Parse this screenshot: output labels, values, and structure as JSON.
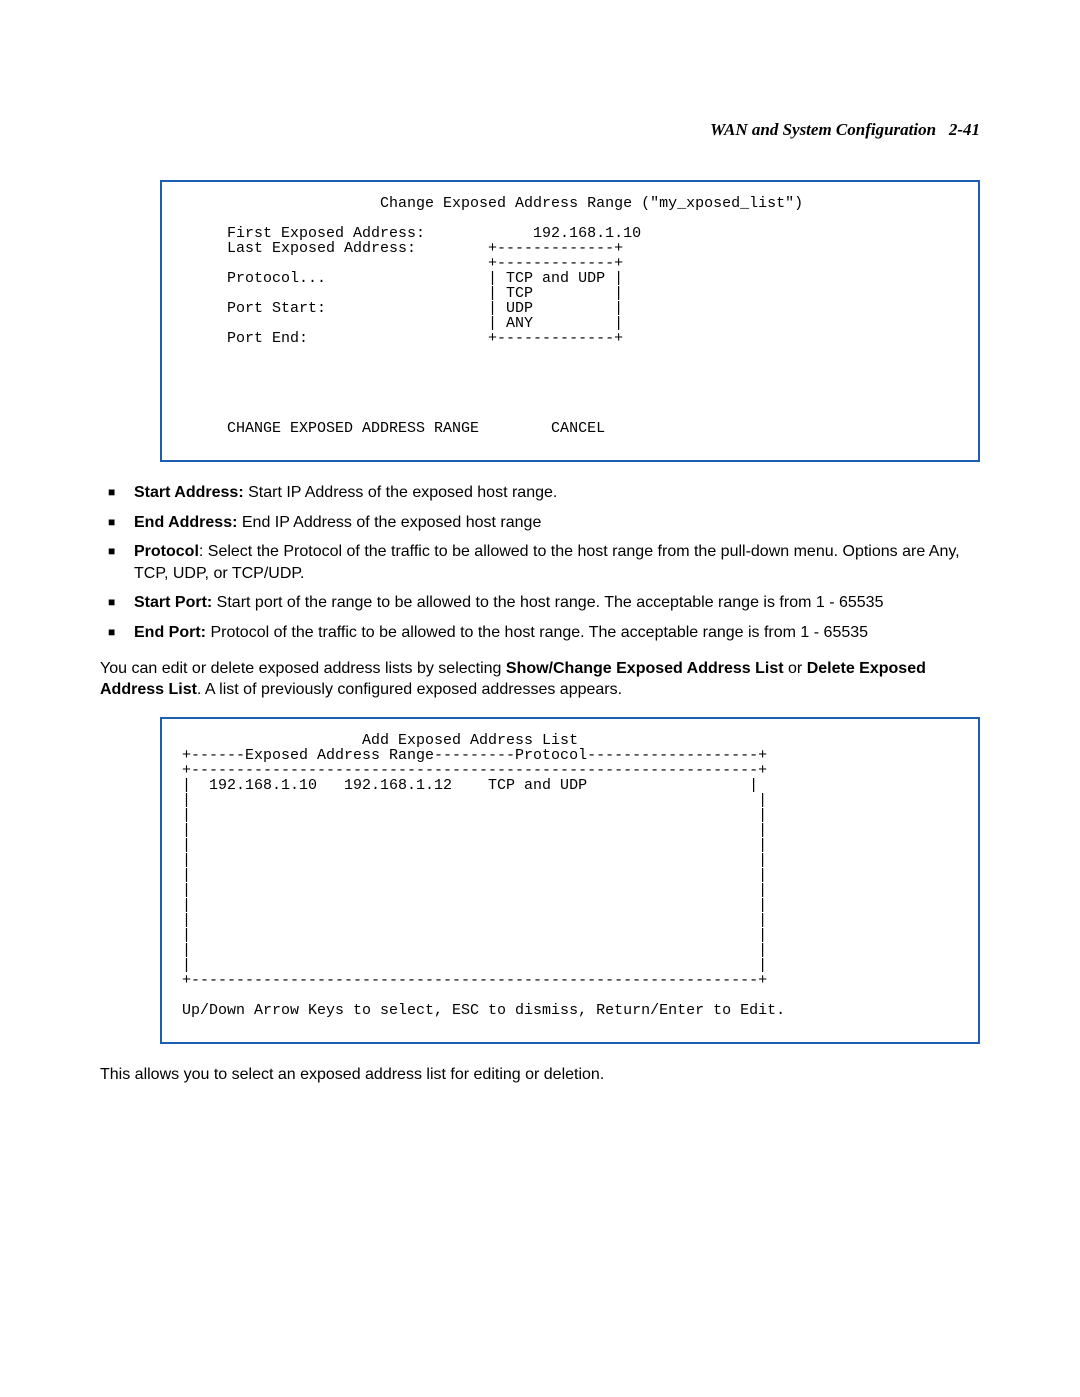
{
  "header": {
    "title": "WAN and System Configuration",
    "page_ref": "2-41"
  },
  "terminal1": {
    "title": "Change Exposed Address Range (\"my_xposed_list\")",
    "labels": {
      "first": "First Exposed Address:",
      "last": "Last Exposed Address:",
      "protocol": "Protocol...",
      "port_start": "Port Start:",
      "port_end": "Port End:"
    },
    "values": {
      "first": "192.168.1.10"
    },
    "menu": {
      "items": [
        "TCP and UDP",
        "TCP",
        "UDP",
        "ANY"
      ]
    },
    "buttons": {
      "change": "CHANGE EXPOSED ADDRESS RANGE",
      "cancel": "CANCEL"
    }
  },
  "bullets": [
    {
      "term": "Start Address:",
      "text": " Start IP Address of the exposed host range."
    },
    {
      "term": "End Address:",
      "text": " End IP Address of the exposed host range"
    },
    {
      "term": "Protocol",
      "text": ": Select the Protocol of the traffic to be allowed to the host range from the pull-down menu. Options are Any, TCP, UDP, or TCP/UDP."
    },
    {
      "term": "Start Port:",
      "text": " Start port of the range to be allowed to the host range. The acceptable range is from 1 - 65535"
    },
    {
      "term": "End Port:",
      "text": " Protocol of the traffic to be allowed to the host range. The acceptable range is from 1 - 65535"
    }
  ],
  "para1": {
    "pre": "You can edit or delete exposed address lists by selecting ",
    "bold1": "Show/Change Exposed Address List",
    "mid": " or ",
    "bold2": "Delete Exposed Address List",
    "post": ". A list of previously configured exposed addresses appears."
  },
  "terminal2": {
    "title": "Add Exposed Address List",
    "col1": "Exposed Address Range",
    "col2": "Protocol",
    "row": {
      "start": "192.168.1.10",
      "end": "192.168.1.12",
      "proto": "TCP and UDP"
    },
    "footer": "Up/Down Arrow Keys to select, ESC to dismiss, Return/Enter to Edit."
  },
  "para2": "This allows you to select an exposed address list for editing or deletion.",
  "colors": {
    "border": "#1a5fb4",
    "text": "#000000",
    "background": "#ffffff"
  }
}
